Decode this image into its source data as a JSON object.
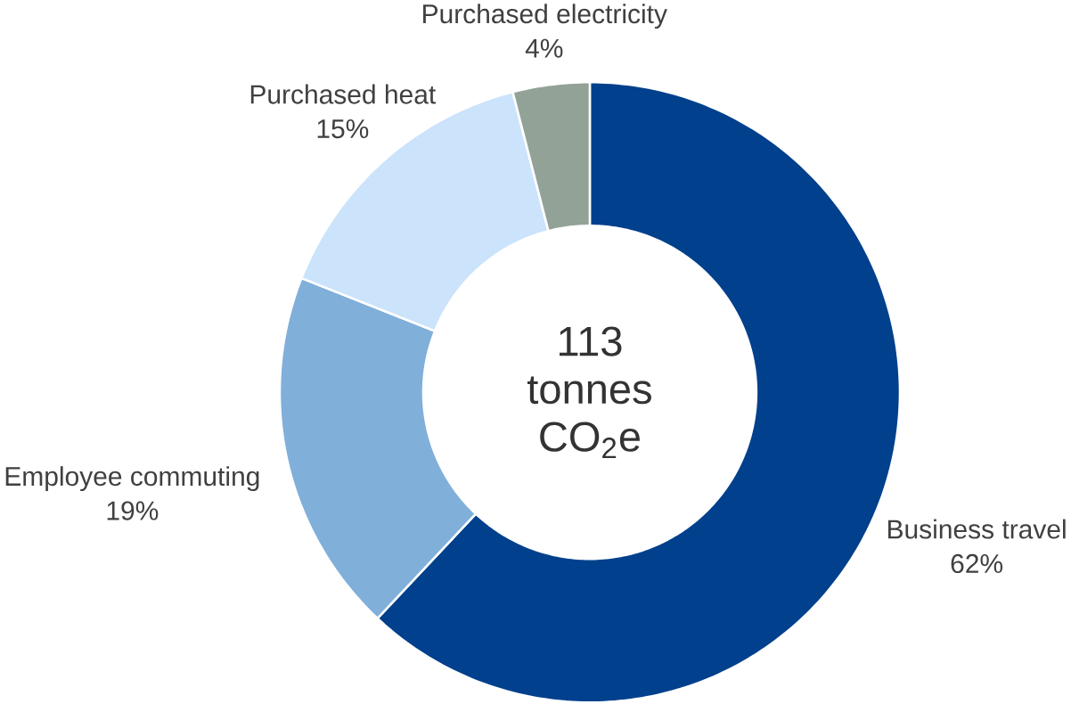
{
  "chart_data": {
    "type": "donut",
    "categories": [
      "Business travel",
      "Employee commuting",
      "Purchased heat",
      "Purchased electricity"
    ],
    "values": [
      62,
      19,
      15,
      4
    ],
    "colors": [
      "#00408c",
      "#80afda",
      "#cbe3fb",
      "#93a297"
    ],
    "value_labels": [
      "62%",
      "19%",
      "15%",
      "4%"
    ],
    "annotations": [
      "113",
      "tonnes",
      "CO$_{2}$e"
    ]
  }
}
